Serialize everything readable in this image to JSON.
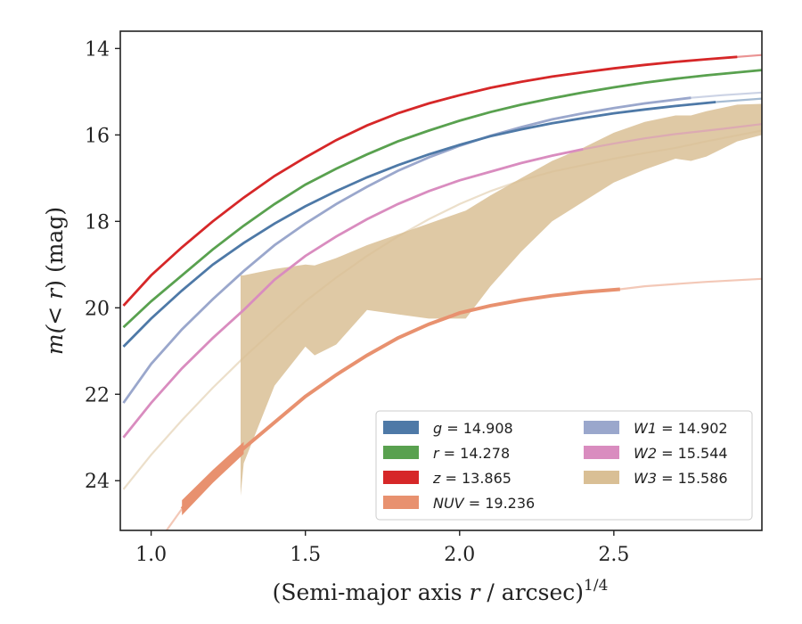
{
  "chart_data": {
    "type": "line",
    "title": "",
    "xlabel": {
      "text": "(Semi-major axis ",
      "var": "r",
      "unit": " / arcsec)",
      "sup": "1/4"
    },
    "ylabel": {
      "pre": "m(",
      "lt": "< ",
      "var": "r",
      "post": ") (mag)"
    },
    "xlim": [
      0.9,
      2.98
    ],
    "ylim": [
      25.15,
      13.6
    ],
    "y_inverted": true,
    "xticks": [
      1.0,
      1.5,
      2.0,
      2.5
    ],
    "xtick_labels": [
      "1.0",
      "1.5",
      "2.0",
      "2.5"
    ],
    "yticks": [
      14,
      16,
      18,
      20,
      22,
      24
    ],
    "ytick_labels": [
      "14",
      "16",
      "18",
      "20",
      "22",
      "24"
    ],
    "grid": false,
    "legend_position": "lower-right",
    "legend_columns": 2,
    "series": [
      {
        "name": "g",
        "value": "14.908",
        "color": "#4e79a7",
        "x_solid_end": 2.83,
        "x": [
          0.91,
          1.0,
          1.1,
          1.2,
          1.3,
          1.4,
          1.5,
          1.6,
          1.7,
          1.8,
          1.9,
          2.0,
          2.1,
          2.2,
          2.3,
          2.4,
          2.5,
          2.6,
          2.7,
          2.83,
          2.98
        ],
        "y": [
          20.9,
          20.25,
          19.6,
          19.0,
          18.5,
          18.05,
          17.65,
          17.3,
          16.98,
          16.7,
          16.45,
          16.23,
          16.03,
          15.87,
          15.73,
          15.61,
          15.5,
          15.41,
          15.33,
          15.24,
          15.16
        ]
      },
      {
        "name": "r",
        "value": "14.278",
        "color": "#59a14f",
        "x_solid_end": 2.98,
        "x": [
          0.91,
          1.0,
          1.1,
          1.2,
          1.3,
          1.4,
          1.5,
          1.6,
          1.7,
          1.8,
          1.9,
          2.0,
          2.1,
          2.2,
          2.3,
          2.4,
          2.5,
          2.6,
          2.7,
          2.8,
          2.98
        ],
        "y": [
          20.45,
          19.85,
          19.25,
          18.65,
          18.1,
          17.6,
          17.15,
          16.78,
          16.45,
          16.15,
          15.9,
          15.67,
          15.47,
          15.3,
          15.15,
          15.02,
          14.9,
          14.79,
          14.7,
          14.62,
          14.5
        ]
      },
      {
        "name": "z",
        "value": "13.865",
        "color": "#d62728",
        "x_solid_end": 2.9,
        "x": [
          0.91,
          1.0,
          1.1,
          1.2,
          1.3,
          1.4,
          1.5,
          1.6,
          1.7,
          1.8,
          1.9,
          2.0,
          2.1,
          2.2,
          2.3,
          2.4,
          2.5,
          2.6,
          2.7,
          2.8,
          2.98
        ],
        "y": [
          19.95,
          19.25,
          18.6,
          18.0,
          17.45,
          16.95,
          16.52,
          16.12,
          15.78,
          15.5,
          15.27,
          15.08,
          14.91,
          14.77,
          14.65,
          14.55,
          14.46,
          14.38,
          14.31,
          14.25,
          14.15
        ]
      },
      {
        "name": "NUV",
        "value": "19.236",
        "color": "#e8916f",
        "x_solid_end": 2.52,
        "x": [
          1.0,
          1.1,
          1.2,
          1.3,
          1.4,
          1.5,
          1.6,
          1.7,
          1.8,
          1.9,
          2.0,
          2.1,
          2.2,
          2.3,
          2.4,
          2.52,
          2.6,
          2.7,
          2.8,
          2.9,
          2.98
        ],
        "y": [
          25.65,
          24.65,
          23.9,
          23.25,
          22.65,
          22.05,
          21.55,
          21.1,
          20.7,
          20.38,
          20.12,
          19.95,
          19.82,
          19.72,
          19.64,
          19.57,
          19.5,
          19.45,
          19.4,
          19.36,
          19.33
        ],
        "band_x": [
          1.1,
          1.2,
          1.3
        ],
        "band_low": [
          24.45,
          23.75,
          23.1
        ],
        "band_high": [
          24.8,
          24.05,
          23.38
        ]
      },
      {
        "name": "W1",
        "value": "14.902",
        "color": "#9aa7cc",
        "x_solid_end": 2.75,
        "x": [
          0.91,
          1.0,
          1.1,
          1.2,
          1.3,
          1.4,
          1.5,
          1.6,
          1.7,
          1.8,
          1.9,
          2.0,
          2.1,
          2.2,
          2.3,
          2.4,
          2.5,
          2.6,
          2.75,
          2.85,
          2.98
        ],
        "y": [
          22.2,
          21.3,
          20.5,
          19.8,
          19.15,
          18.55,
          18.05,
          17.6,
          17.2,
          16.83,
          16.52,
          16.25,
          16.02,
          15.82,
          15.64,
          15.5,
          15.38,
          15.27,
          15.14,
          15.08,
          15.02
        ]
      },
      {
        "name": "W2",
        "value": "15.544",
        "color": "#d98cbf",
        "x_solid_end": 2.4,
        "x": [
          0.91,
          1.0,
          1.1,
          1.2,
          1.3,
          1.4,
          1.5,
          1.6,
          1.7,
          1.8,
          1.9,
          2.0,
          2.1,
          2.2,
          2.3,
          2.4,
          2.5,
          2.6,
          2.7,
          2.85,
          2.98
        ],
        "y": [
          23.0,
          22.2,
          21.4,
          20.7,
          20.05,
          19.35,
          18.8,
          18.35,
          17.95,
          17.6,
          17.3,
          17.05,
          16.85,
          16.65,
          16.48,
          16.33,
          16.2,
          16.08,
          15.98,
          15.86,
          15.75
        ]
      },
      {
        "name": "W3",
        "value": "15.586",
        "color": "#d9bf95",
        "x_solid_end": 2.98,
        "x": [
          0.91,
          1.0,
          1.1,
          1.2,
          1.3,
          1.4,
          1.5,
          1.6,
          1.7,
          1.8,
          1.9,
          2.0,
          2.1,
          2.2,
          2.3,
          2.4,
          2.5,
          2.6,
          2.7,
          2.8,
          2.98
        ],
        "y": [
          24.2,
          23.4,
          22.6,
          21.85,
          21.15,
          20.5,
          19.85,
          19.3,
          18.8,
          18.35,
          17.95,
          17.6,
          17.3,
          17.05,
          16.85,
          16.7,
          16.55,
          16.42,
          16.3,
          16.15,
          15.9
        ],
        "band_x": [
          1.29,
          1.3,
          1.4,
          1.5,
          1.53,
          1.6,
          1.7,
          1.8,
          1.9,
          2.0,
          2.02,
          2.1,
          2.2,
          2.3,
          2.4,
          2.5,
          2.6,
          2.7,
          2.75,
          2.8,
          2.9,
          2.98
        ],
        "band_upper": [
          19.25,
          19.25,
          19.1,
          19.0,
          19.02,
          18.85,
          18.55,
          18.3,
          18.05,
          17.8,
          17.75,
          17.4,
          17.0,
          16.6,
          16.3,
          15.95,
          15.7,
          15.55,
          15.55,
          15.45,
          15.3,
          15.28
        ],
        "band_lower": [
          24.35,
          23.6,
          21.8,
          20.9,
          21.1,
          20.85,
          20.05,
          20.15,
          20.25,
          20.25,
          20.25,
          19.5,
          18.7,
          18.0,
          17.55,
          17.1,
          16.8,
          16.55,
          16.6,
          16.5,
          16.15,
          16.0
        ]
      }
    ]
  }
}
